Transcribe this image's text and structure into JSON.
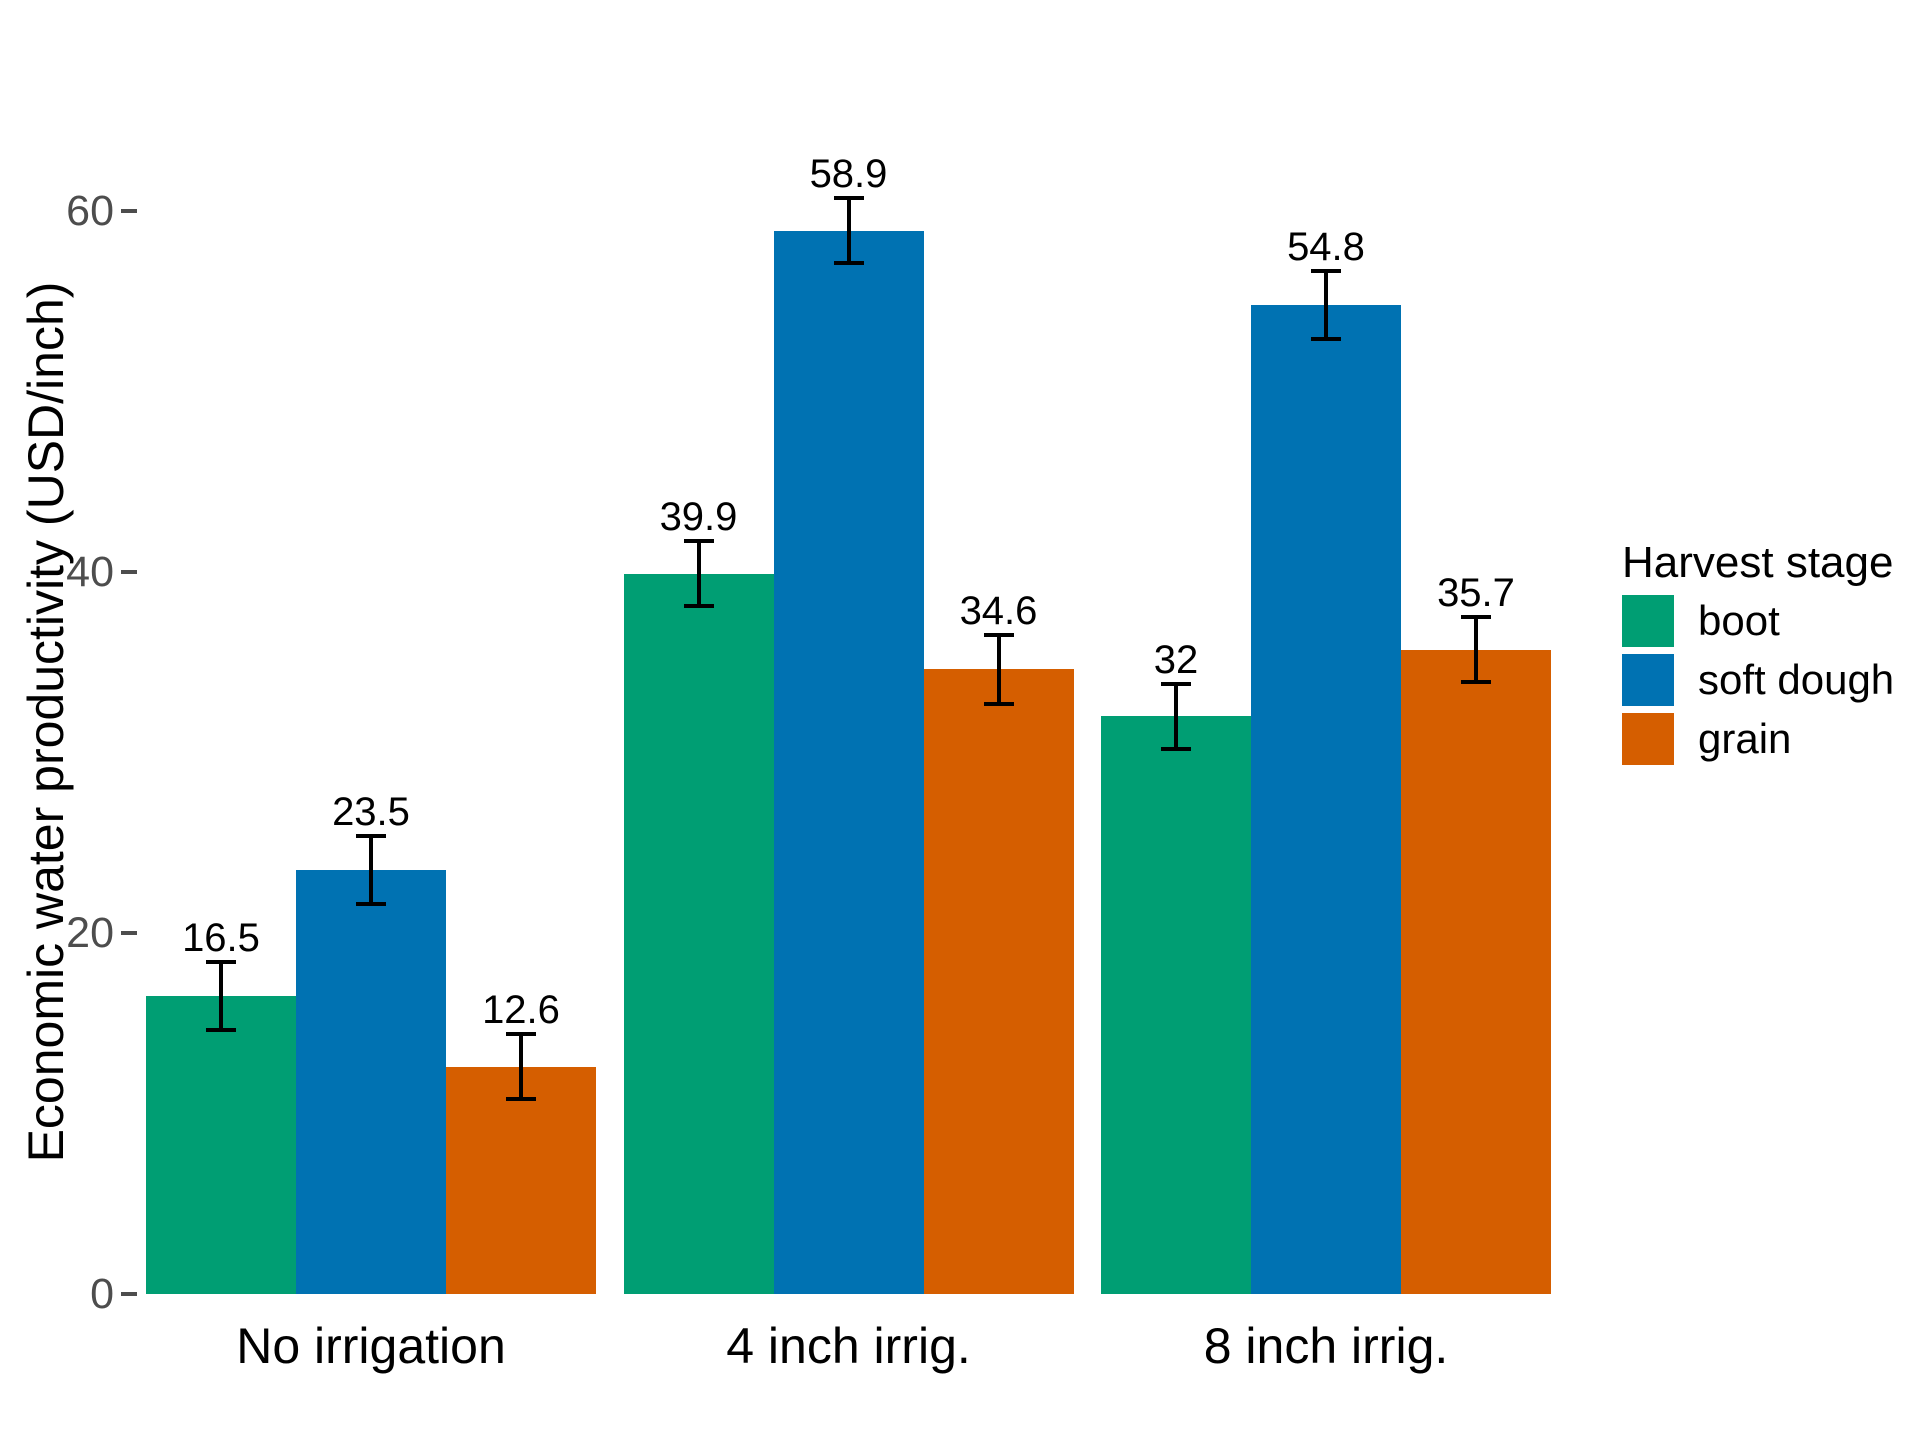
{
  "chart_data": {
    "type": "bar",
    "title": "",
    "xlabel": "",
    "ylabel": "Economic water productivity (USD/inch)",
    "categories": [
      "No irrigation",
      "4 inch irrig.",
      "8 inch irrig."
    ],
    "series": [
      {
        "name": "boot",
        "color": "#009E73",
        "values": [
          16.5,
          39.9,
          32
        ],
        "value_labels": [
          "16.5",
          "39.9",
          "32"
        ],
        "errors": [
          1.9,
          1.8,
          1.8
        ]
      },
      {
        "name": "soft dough",
        "color": "#0072B2",
        "values": [
          23.5,
          58.9,
          54.8
        ],
        "value_labels": [
          "23.5",
          "58.9",
          "54.8"
        ],
        "errors": [
          1.9,
          1.8,
          1.9
        ]
      },
      {
        "name": "grain",
        "color": "#D55E00",
        "values": [
          12.6,
          34.6,
          35.7
        ],
        "value_labels": [
          "12.6",
          "34.6",
          "35.7"
        ],
        "errors": [
          1.8,
          1.9,
          1.8
        ]
      }
    ],
    "legend": {
      "title": "Harvest stage",
      "position": "right",
      "entries": [
        "boot",
        "soft dough",
        "grain"
      ]
    },
    "yticks": [
      "0",
      "20",
      "40",
      "60"
    ],
    "ytick_values": [
      0,
      20,
      40,
      60
    ],
    "ylim": [
      0,
      64
    ],
    "grid": false,
    "error_bars": true,
    "background": "#ffffff",
    "tick_label_color": "#4d4d4d"
  }
}
